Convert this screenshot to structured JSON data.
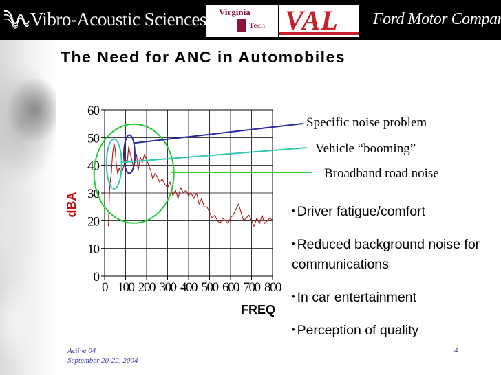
{
  "header": {
    "logos": {
      "vibro": "Vibro-Acoustic Sciences",
      "virginia": "Virginia",
      "tech": "Tech",
      "val": "VAL",
      "ford": "Ford Motor Company"
    }
  },
  "slide": {
    "title": "The Need for ANC in Automobiles"
  },
  "chart_data": {
    "type": "line",
    "title": "",
    "xlabel": "FREQ",
    "ylabel": "dBA",
    "xlim": [
      0,
      800
    ],
    "ylim": [
      0,
      60
    ],
    "x_ticks": [
      "0",
      "100",
      "200",
      "300",
      "400",
      "500",
      "600",
      "700",
      "800"
    ],
    "y_ticks": [
      "0",
      "10",
      "20",
      "30",
      "40",
      "50",
      "60"
    ],
    "grid": true,
    "series": [
      {
        "color": "#b01818",
        "x": [
          18,
          25,
          32,
          38,
          45,
          50,
          55,
          62,
          70,
          78,
          85,
          92,
          100,
          108,
          115,
          122,
          130,
          138,
          145,
          152,
          160,
          170,
          180,
          190,
          200,
          210,
          220,
          230,
          240,
          250,
          262,
          275,
          288,
          300,
          312,
          325,
          338,
          350,
          362,
          375,
          388,
          400,
          412,
          425,
          438,
          450,
          462,
          475,
          488,
          500,
          512,
          525,
          538,
          550,
          562,
          575,
          588,
          600,
          612,
          625,
          638,
          650,
          662,
          675,
          688,
          700,
          712,
          725,
          738,
          750,
          762,
          775,
          788,
          800
        ],
        "y": [
          18,
          33,
          37,
          44,
          48,
          46,
          41,
          37,
          39,
          37,
          38,
          40,
          42,
          41,
          47,
          44,
          42,
          39,
          41,
          44,
          38,
          43,
          41,
          44,
          42,
          40,
          38,
          35,
          37,
          36,
          34,
          35,
          33,
          32,
          34,
          29,
          31,
          28,
          32,
          30,
          31,
          29,
          30,
          28,
          30,
          26,
          28,
          25,
          25,
          23,
          21,
          22,
          20,
          19,
          21,
          20,
          19,
          21,
          22,
          24,
          26,
          23,
          20,
          21,
          22,
          20,
          18,
          21,
          19,
          22,
          19,
          20,
          21,
          20
        ]
      }
    ],
    "annotations": [
      {
        "label": "Specific noise problem",
        "color": "#2a2aa0",
        "target": "narrow ellipse ~130 Hz, ~42-51 dBA"
      },
      {
        "label": "Vehicle “booming”",
        "color": "#30c8b0",
        "target": "ellipse ~50 Hz, ~33-49 dBA"
      },
      {
        "label": "Broadband road noise",
        "color": "#22cc33",
        "target": "circle ~0-400 Hz, ~19-55 dBA"
      }
    ]
  },
  "bullets": [
    "Driver fatigue/comfort",
    "Reduced background noise for communications",
    "In car entertainment",
    "Perception of quality"
  ],
  "footer": {
    "conference": "Active 04",
    "dates": "September 20-22, 2004",
    "page": "4"
  }
}
